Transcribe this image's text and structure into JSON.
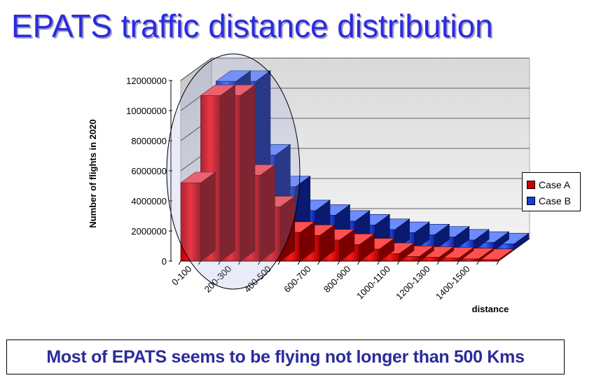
{
  "slide": {
    "title": "EPATS traffic distance distribution",
    "note": "Most of EPATS seems to be flying not longer than 500 Kms"
  },
  "chart_data": {
    "type": "bar",
    "subtype": "3d-column",
    "ylabel": "Number of flights in 2020",
    "xlabel": "distance",
    "ylim": [
      0,
      12000000
    ],
    "y_ticks": [
      "0",
      "2000000",
      "4000000",
      "6000000",
      "8000000",
      "10000000",
      "12000000"
    ],
    "categories": [
      "0-100",
      "100-200",
      "200-300",
      "300-400",
      "400-500",
      "500-600",
      "600-700",
      "700-800",
      "800-900",
      "900-1000",
      "1000-1100",
      "1100-1200",
      "1200-1300",
      "1300-1400",
      "1400-1500",
      "1500-1600"
    ],
    "x_tick_labels": [
      "0-100",
      "200-300",
      "400-500",
      "600-700",
      "800-900",
      "1000-1100",
      "1200-1300",
      "1400-1500"
    ],
    "series": [
      {
        "name": "Case A",
        "color": "#cc0000",
        "values": [
          5200000,
          11000000,
          11000000,
          5700000,
          3600000,
          1900000,
          1700000,
          1400000,
          1100000,
          800000,
          500000,
          300000,
          250000,
          200000,
          150000,
          100000
        ]
      },
      {
        "name": "Case B",
        "color": "#1a3fd6",
        "values": [
          3000000,
          11200000,
          11200000,
          6300000,
          4200000,
          2600000,
          2300000,
          1900000,
          1650000,
          1350000,
          1150000,
          1000000,
          850000,
          650000,
          500000,
          400000
        ]
      }
    ],
    "grid": true,
    "legend_position": "right",
    "highlight": "ellipse"
  }
}
